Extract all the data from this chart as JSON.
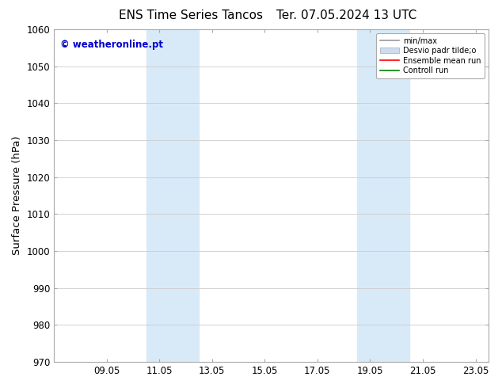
{
  "title_left": "ENS Time Series Tancos",
  "title_right": "Ter. 07.05.2024 13 UTC",
  "ylabel": "Surface Pressure (hPa)",
  "ylim": [
    970,
    1060
  ],
  "yticks": [
    970,
    980,
    990,
    1000,
    1010,
    1020,
    1030,
    1040,
    1050,
    1060
  ],
  "xtick_labels": [
    "09.05",
    "11.05",
    "13.05",
    "15.05",
    "17.05",
    "19.05",
    "21.05",
    "23.05"
  ],
  "xtick_positions": [
    2,
    4,
    6,
    8,
    10,
    12,
    14,
    16
  ],
  "xlim": [
    0,
    16.5
  ],
  "shaded_bands": [
    {
      "x_start": 3.5,
      "x_end": 5.5,
      "color": "#d8eaf8"
    },
    {
      "x_start": 11.5,
      "x_end": 13.5,
      "color": "#d8eaf8"
    }
  ],
  "watermark_text": "© weatheronline.pt",
  "watermark_color": "#0000cc",
  "legend_entries": [
    {
      "label": "min/max",
      "color": "#999999",
      "lw": 1.2,
      "type": "line"
    },
    {
      "label": "Desvio padr tilde;o",
      "color": "#ccddf0",
      "lw": 7,
      "type": "band"
    },
    {
      "label": "Ensemble mean run",
      "color": "red",
      "lw": 1.2,
      "type": "line"
    },
    {
      "label": "Controll run",
      "color": "green",
      "lw": 1.2,
      "type": "line"
    }
  ],
  "bg_color": "#ffffff",
  "grid_color": "#cccccc",
  "title_fontsize": 11,
  "tick_fontsize": 8.5,
  "label_fontsize": 9.5,
  "watermark_fontsize": 8.5
}
